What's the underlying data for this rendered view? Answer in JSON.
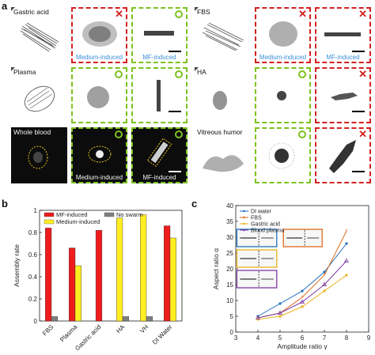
{
  "panel_labels": {
    "a": "a",
    "b": "b",
    "c": "c"
  },
  "panel_a": {
    "tiles": [
      {
        "id": "gastric-raw",
        "label": "Gastric acid"
      },
      {
        "id": "gastric-medium",
        "caption": "Medium-induced",
        "mark": "x"
      },
      {
        "id": "gastric-mf",
        "caption": "MF-induced",
        "mark": "o"
      },
      {
        "id": "fbs-raw",
        "label": "FBS"
      },
      {
        "id": "fbs-medium",
        "caption": "Medium-induced",
        "mark": "x"
      },
      {
        "id": "fbs-mf",
        "caption": "MF-induced",
        "mark": "x"
      },
      {
        "id": "plasma-raw",
        "label": "Plasma"
      },
      {
        "id": "plasma-medium",
        "mark": "o"
      },
      {
        "id": "plasma-mf",
        "mark": "o"
      },
      {
        "id": "ha-raw",
        "label": "HA"
      },
      {
        "id": "ha-medium",
        "mark": "o"
      },
      {
        "id": "ha-mf",
        "mark": "x"
      },
      {
        "id": "blood-raw",
        "label": "Whole blood"
      },
      {
        "id": "blood-medium",
        "caption": "Medium-induced",
        "mark": "o"
      },
      {
        "id": "blood-mf",
        "caption": "MF-induced",
        "mark": "o"
      },
      {
        "id": "vitreous-raw",
        "label": "Vitreous humor"
      },
      {
        "id": "vitreous-medium",
        "mark": "o"
      },
      {
        "id": "vitreous-mf",
        "mark": "x"
      }
    ]
  },
  "chart_data": [
    {
      "type": "bar",
      "ylabel": "Assembly rate",
      "ylim": [
        0,
        1
      ],
      "yticks": [
        "0",
        "0.2",
        "0.4",
        "0.6",
        "0.8",
        "1"
      ],
      "categories": [
        "FBS",
        "Plasma",
        "Gastric acid",
        "HA",
        "VH",
        "DI Water"
      ],
      "series": [
        {
          "name": "MF-induced",
          "color": "#ee1c1c",
          "values": [
            0.84,
            0.66,
            0.82,
            0,
            0,
            0.86
          ]
        },
        {
          "name": "No swarm",
          "color": "#7f7f7f",
          "values": [
            0.04,
            0,
            0,
            0.04,
            0.04,
            0
          ]
        },
        {
          "name": "Medium-induced",
          "color": "#ffee22",
          "values": [
            0,
            0.5,
            0,
            0.93,
            0.96,
            0.75
          ]
        }
      ],
      "legend": "top-left"
    },
    {
      "type": "line",
      "xlabel": "Amplitude ratio γ",
      "ylabel": "Aspect ratio α",
      "xlim": [
        3,
        9
      ],
      "ylim": [
        0,
        40
      ],
      "xticks": [
        "3",
        "4",
        "5",
        "6",
        "7",
        "8",
        "9"
      ],
      "yticks": [
        "0",
        "5",
        "10",
        "15",
        "20",
        "25",
        "30",
        "35",
        "40"
      ],
      "x": [
        4,
        5,
        6,
        7,
        8
      ],
      "series": [
        {
          "name": "DI water",
          "color": "#1f6fbf",
          "marker": "dot",
          "values": [
            5,
            9,
            13,
            19,
            28
          ]
        },
        {
          "name": "FBS",
          "color": "#e06a1e",
          "marker": "star",
          "values": [
            4.5,
            6,
            11,
            18,
            32
          ]
        },
        {
          "name": "Gastric acid",
          "color": "#e8b21a",
          "marker": "dot",
          "values": [
            4,
            5,
            8,
            13,
            18
          ]
        },
        {
          "name": "Blood plasma",
          "color": "#7a3aa0",
          "marker": "triangle",
          "values": [
            4.5,
            6,
            9.5,
            15,
            22.5
          ]
        }
      ],
      "legend": "top-left"
    }
  ]
}
